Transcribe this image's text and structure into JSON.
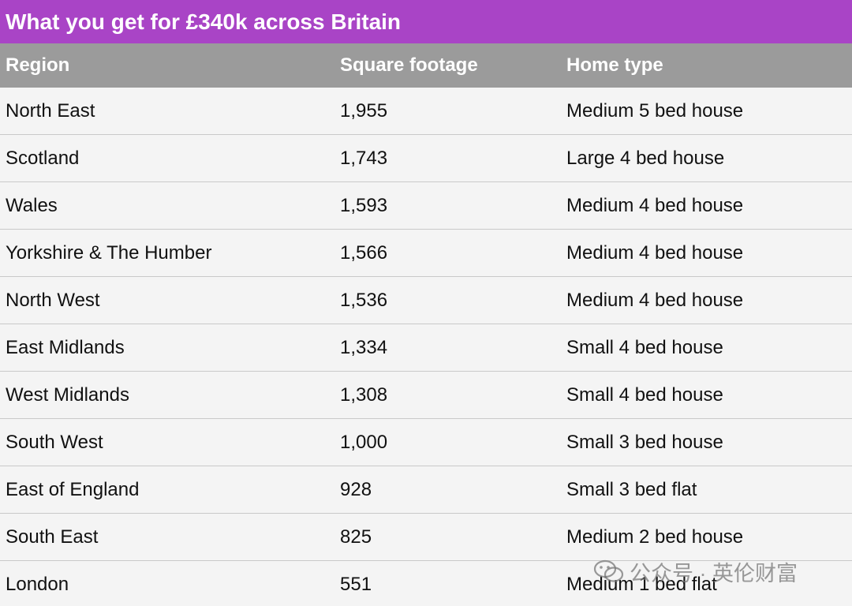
{
  "title": "What you get for £340k across Britain",
  "colors": {
    "title_bg": "#a944c6",
    "header_bg": "#9b9b9b",
    "row_bg": "#f4f4f4",
    "divider": "#c9c9c9"
  },
  "table": {
    "headers": [
      "Region",
      "Square footage",
      "Home type"
    ],
    "rows": [
      [
        "North East",
        "1,955",
        "Medium 5 bed house"
      ],
      [
        "Scotland",
        "1,743",
        "Large 4 bed house"
      ],
      [
        "Wales",
        "1,593",
        "Medium 4 bed house"
      ],
      [
        "Yorkshire & The Humber",
        "1,566",
        "Medium 4 bed house"
      ],
      [
        "North West",
        "1,536",
        "Medium 4 bed house"
      ],
      [
        "East Midlands",
        "1,334",
        "Small 4 bed house"
      ],
      [
        "West Midlands",
        "1,308",
        "Small 4 bed house"
      ],
      [
        "South West",
        "1,000",
        "Small 3 bed house"
      ],
      [
        "East of England",
        "928",
        "Small 3 bed flat"
      ],
      [
        "South East",
        "825",
        "Medium 2 bed house"
      ],
      [
        "London",
        "551",
        "Medium 1 bed flat"
      ]
    ]
  },
  "chart_data": {
    "type": "table",
    "title": "What you get for £340k across Britain",
    "columns": [
      "Region",
      "Square footage",
      "Home type"
    ],
    "rows": [
      {
        "Region": "North East",
        "Square footage": 1955,
        "Home type": "Medium 5 bed house"
      },
      {
        "Region": "Scotland",
        "Square footage": 1743,
        "Home type": "Large 4 bed house"
      },
      {
        "Region": "Wales",
        "Square footage": 1593,
        "Home type": "Medium 4 bed house"
      },
      {
        "Region": "Yorkshire & The Humber",
        "Square footage": 1566,
        "Home type": "Medium 4 bed house"
      },
      {
        "Region": "North West",
        "Square footage": 1536,
        "Home type": "Medium 4 bed house"
      },
      {
        "Region": "East Midlands",
        "Square footage": 1334,
        "Home type": "Small 4 bed house"
      },
      {
        "Region": "West Midlands",
        "Square footage": 1308,
        "Home type": "Small 4 bed house"
      },
      {
        "Region": "South West",
        "Square footage": 1000,
        "Home type": "Small 3 bed house"
      },
      {
        "Region": "East of England",
        "Square footage": 928,
        "Home type": "Small 3 bed flat"
      },
      {
        "Region": "South East",
        "Square footage": 825,
        "Home type": "Medium 2 bed house"
      },
      {
        "Region": "London",
        "Square footage": 551,
        "Home type": "Medium 1 bed flat"
      }
    ]
  },
  "watermark": {
    "text": "公众号 · 英伦财富",
    "icon": "wechat-icon"
  }
}
